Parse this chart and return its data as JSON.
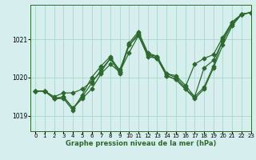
{
  "xlabel": "Graphe pression niveau de la mer (hPa)",
  "xlim": [
    -0.5,
    23
  ],
  "ylim": [
    1018.6,
    1021.9
  ],
  "yticks": [
    1019,
    1020,
    1021
  ],
  "xticks": [
    0,
    1,
    2,
    3,
    4,
    5,
    6,
    7,
    8,
    9,
    10,
    11,
    12,
    13,
    14,
    15,
    16,
    17,
    18,
    19,
    20,
    21,
    22,
    23
  ],
  "bg_color": "#d6eeee",
  "grid_color": "#a8d8c8",
  "line_color": "#2d6a2d",
  "markersize": 2.5,
  "linewidth": 0.9,
  "series": [
    [
      1019.65,
      1019.65,
      1019.45,
      1019.5,
      1019.2,
      1019.45,
      1019.7,
      1020.1,
      1020.35,
      1020.15,
      1020.65,
      1021.1,
      1020.55,
      1020.5,
      1020.05,
      1019.95,
      1019.7,
      1019.45,
      1019.7,
      1020.25,
      1020.85,
      1021.35,
      1021.65,
      1021.7
    ],
    [
      1019.65,
      1019.65,
      1019.45,
      1019.5,
      1019.2,
      1019.5,
      1019.85,
      1020.2,
      1020.5,
      1020.1,
      1020.85,
      1021.15,
      1020.6,
      1020.5,
      1020.05,
      1019.95,
      1019.7,
      1019.5,
      1020.25,
      1020.45,
      1020.95,
      1021.4,
      1021.65,
      1021.7
    ],
    [
      1019.65,
      1019.65,
      1019.45,
      1019.45,
      1019.15,
      1019.55,
      1020.0,
      1020.3,
      1020.55,
      1020.15,
      1020.9,
      1021.2,
      1020.65,
      1020.55,
      1020.1,
      1020.0,
      1019.75,
      1020.35,
      1020.5,
      1020.6,
      1021.05,
      1021.45,
      1021.65,
      1021.7
    ],
    [
      1019.65,
      1019.65,
      1019.5,
      1019.6,
      1019.6,
      1019.7,
      1019.9,
      1020.15,
      1020.5,
      1020.2,
      1020.85,
      1021.1,
      1020.6,
      1020.55,
      1020.1,
      1020.05,
      1019.8,
      1019.5,
      1019.75,
      1020.3,
      1021.0,
      1021.45,
      1021.65,
      1021.7
    ]
  ]
}
